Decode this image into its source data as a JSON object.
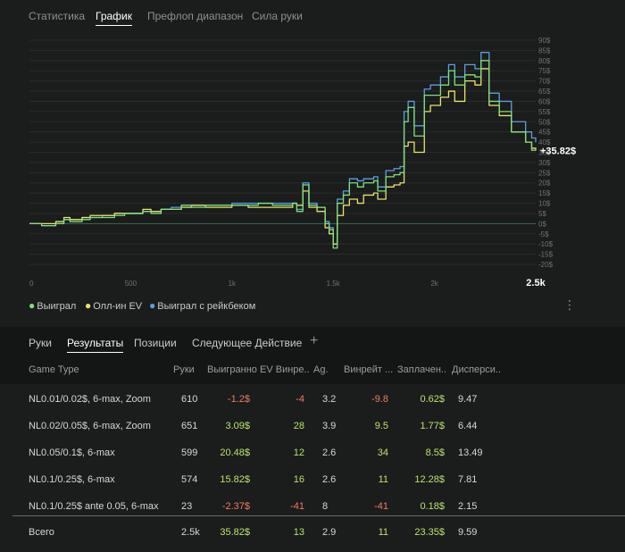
{
  "top_tabs": [
    {
      "label": "Статистика",
      "active": false
    },
    {
      "label": "График",
      "active": true
    },
    {
      "label": "Префлоп диапазон",
      "active": false
    },
    {
      "label": "Сила руки",
      "active": false
    }
  ],
  "chart_data": {
    "type": "line",
    "x_ticks": [
      "0",
      "500",
      "1k",
      "1.5k",
      "2k",
      "2.5k"
    ],
    "x_tick_values": [
      0,
      500,
      1000,
      1500,
      2000,
      2500
    ],
    "y_ticks": [
      "-20$",
      "-15$",
      "-10$",
      "-5$",
      "0$",
      "5$",
      "10$",
      "15$",
      "20$",
      "25$",
      "30$",
      "35$",
      "40$",
      "45$",
      "50$",
      "55$",
      "60$",
      "65$",
      "70$",
      "75$",
      "80$",
      "85$",
      "90$"
    ],
    "y_tick_values": [
      -20,
      -15,
      -10,
      -5,
      0,
      5,
      10,
      15,
      20,
      25,
      30,
      35,
      40,
      45,
      50,
      55,
      60,
      65,
      70,
      75,
      80,
      85,
      90
    ],
    "xlim": [
      0,
      2500
    ],
    "ylim": [
      -20,
      90
    ],
    "x_max_label": "2.5k",
    "end_label": "+35.82$",
    "series": [
      {
        "name": "Выиграл",
        "color": "#7ee07a",
        "points": [
          [
            0,
            0
          ],
          [
            60,
            -1
          ],
          [
            130,
            0
          ],
          [
            170,
            2
          ],
          [
            200,
            1
          ],
          [
            260,
            2
          ],
          [
            300,
            3
          ],
          [
            360,
            3
          ],
          [
            420,
            4
          ],
          [
            470,
            5
          ],
          [
            560,
            6
          ],
          [
            600,
            5
          ],
          [
            650,
            7
          ],
          [
            700,
            7
          ],
          [
            750,
            9
          ],
          [
            800,
            8
          ],
          [
            870,
            9
          ],
          [
            950,
            9
          ],
          [
            1000,
            9
          ],
          [
            1080,
            9
          ],
          [
            1130,
            10
          ],
          [
            1200,
            9
          ],
          [
            1270,
            9
          ],
          [
            1300,
            10
          ],
          [
            1320,
            6
          ],
          [
            1350,
            19
          ],
          [
            1380,
            9
          ],
          [
            1420,
            8
          ],
          [
            1460,
            0
          ],
          [
            1480,
            -3
          ],
          [
            1500,
            -12
          ],
          [
            1520,
            10
          ],
          [
            1550,
            14
          ],
          [
            1580,
            20
          ],
          [
            1620,
            18
          ],
          [
            1650,
            20
          ],
          [
            1700,
            21
          ],
          [
            1720,
            16
          ],
          [
            1760,
            23
          ],
          [
            1800,
            24
          ],
          [
            1830,
            25
          ],
          [
            1850,
            50
          ],
          [
            1870,
            57
          ],
          [
            1900,
            43
          ],
          [
            1950,
            63
          ],
          [
            1980,
            63
          ],
          [
            2030,
            68
          ],
          [
            2070,
            75
          ],
          [
            2100,
            68
          ],
          [
            2150,
            73
          ],
          [
            2200,
            72
          ],
          [
            2230,
            80
          ],
          [
            2270,
            60
          ],
          [
            2320,
            55
          ],
          [
            2380,
            45
          ],
          [
            2450,
            40
          ],
          [
            2480,
            36
          ],
          [
            2500,
            35.82
          ]
        ]
      },
      {
        "name": "Олл-ин EV",
        "color": "#e8e46a",
        "points": [
          [
            0,
            0
          ],
          [
            60,
            0
          ],
          [
            130,
            1
          ],
          [
            170,
            3
          ],
          [
            200,
            2
          ],
          [
            260,
            3
          ],
          [
            300,
            4
          ],
          [
            360,
            4
          ],
          [
            420,
            5
          ],
          [
            470,
            5
          ],
          [
            560,
            7
          ],
          [
            600,
            6
          ],
          [
            650,
            7
          ],
          [
            700,
            7
          ],
          [
            750,
            8
          ],
          [
            800,
            9
          ],
          [
            870,
            8
          ],
          [
            950,
            8
          ],
          [
            1000,
            9
          ],
          [
            1080,
            8
          ],
          [
            1130,
            8
          ],
          [
            1200,
            8
          ],
          [
            1270,
            8
          ],
          [
            1300,
            10
          ],
          [
            1320,
            9
          ],
          [
            1350,
            16
          ],
          [
            1380,
            8
          ],
          [
            1420,
            6
          ],
          [
            1460,
            -2
          ],
          [
            1480,
            -5
          ],
          [
            1500,
            -10
          ],
          [
            1520,
            4
          ],
          [
            1550,
            9
          ],
          [
            1580,
            12
          ],
          [
            1620,
            10
          ],
          [
            1650,
            14
          ],
          [
            1700,
            15
          ],
          [
            1720,
            12
          ],
          [
            1760,
            18
          ],
          [
            1800,
            19
          ],
          [
            1830,
            20
          ],
          [
            1850,
            38
          ],
          [
            1870,
            40
          ],
          [
            1900,
            35
          ],
          [
            1950,
            55
          ],
          [
            1980,
            58
          ],
          [
            2030,
            62
          ],
          [
            2070,
            65
          ],
          [
            2100,
            60
          ],
          [
            2150,
            70
          ],
          [
            2200,
            68
          ],
          [
            2230,
            76
          ],
          [
            2270,
            58
          ],
          [
            2320,
            53
          ],
          [
            2380,
            45
          ],
          [
            2450,
            40
          ],
          [
            2480,
            37
          ],
          [
            2500,
            36
          ]
        ]
      },
      {
        "name": "Выиграл с рейкбеком",
        "color": "#5a9fe2",
        "points": [
          [
            0,
            0
          ],
          [
            60,
            -1
          ],
          [
            130,
            0
          ],
          [
            170,
            2
          ],
          [
            200,
            2
          ],
          [
            260,
            3
          ],
          [
            300,
            3
          ],
          [
            360,
            4
          ],
          [
            420,
            5
          ],
          [
            470,
            5
          ],
          [
            560,
            6
          ],
          [
            600,
            6
          ],
          [
            650,
            7
          ],
          [
            700,
            8
          ],
          [
            750,
            9
          ],
          [
            800,
            9
          ],
          [
            870,
            9
          ],
          [
            950,
            9
          ],
          [
            1000,
            10
          ],
          [
            1080,
            10
          ],
          [
            1130,
            10
          ],
          [
            1200,
            10
          ],
          [
            1270,
            10
          ],
          [
            1300,
            10
          ],
          [
            1320,
            7
          ],
          [
            1350,
            20
          ],
          [
            1380,
            10
          ],
          [
            1420,
            8
          ],
          [
            1460,
            1
          ],
          [
            1480,
            -2
          ],
          [
            1500,
            -10
          ],
          [
            1520,
            12
          ],
          [
            1550,
            16
          ],
          [
            1580,
            22
          ],
          [
            1620,
            21
          ],
          [
            1650,
            22
          ],
          [
            1700,
            23
          ],
          [
            1720,
            18
          ],
          [
            1760,
            26
          ],
          [
            1800,
            27
          ],
          [
            1830,
            28
          ],
          [
            1850,
            55
          ],
          [
            1870,
            60
          ],
          [
            1900,
            48
          ],
          [
            1950,
            66
          ],
          [
            1980,
            68
          ],
          [
            2030,
            72
          ],
          [
            2070,
            78
          ],
          [
            2100,
            72
          ],
          [
            2150,
            78
          ],
          [
            2200,
            76
          ],
          [
            2230,
            84
          ],
          [
            2270,
            64
          ],
          [
            2320,
            60
          ],
          [
            2380,
            50
          ],
          [
            2450,
            45
          ],
          [
            2480,
            42
          ],
          [
            2500,
            40
          ]
        ]
      }
    ]
  },
  "legend": [
    {
      "label": "Выиграл",
      "color": "#7ee07a"
    },
    {
      "label": "Олл-ин EV",
      "color": "#e8e46a"
    },
    {
      "label": "Выиграл с рейкбеком",
      "color": "#5a9fe2"
    }
  ],
  "bottom_tabs": [
    {
      "label": "Руки",
      "active": false
    },
    {
      "label": "Результаты",
      "active": true
    },
    {
      "label": "Позиции",
      "active": false
    },
    {
      "label": "Следующее Действие",
      "active": false
    }
  ],
  "add_tab_icon": "+",
  "table": {
    "headers": [
      "Game Type",
      "Руки",
      "Выигранно",
      "EV Винре...",
      "Ag.",
      "Винрейт ...",
      "Заплачен...",
      "Дисперси..."
    ],
    "rows": [
      {
        "game": "NL0.01/0.02$, 6-max, Zoom",
        "hands": "610",
        "won": "-1.2$",
        "ev": "-4",
        "ag": "3.2",
        "winrate": "-9.8",
        "paid": "0.62$",
        "disp": "9.47"
      },
      {
        "game": "NL0.02/0.05$, 6-max, Zoom",
        "hands": "651",
        "won": "3.09$",
        "ev": "28",
        "ag": "3.9",
        "winrate": "9.5",
        "paid": "1.77$",
        "disp": "6.44"
      },
      {
        "game": "NL0.05/0.1$, 6-max",
        "hands": "599",
        "won": "20.48$",
        "ev": "12",
        "ag": "2.6",
        "winrate": "34",
        "paid": "8.5$",
        "disp": "13.49"
      },
      {
        "game": "NL0.1/0.25$, 6-max",
        "hands": "574",
        "won": "15.82$",
        "ev": "16",
        "ag": "2.6",
        "winrate": "11",
        "paid": "12.28$",
        "disp": "7.81"
      },
      {
        "game": "NL0.1/0.25$ ante 0.05, 6-max",
        "hands": "23",
        "won": "-2.37$",
        "ev": "-41",
        "ag": "8",
        "winrate": "-41",
        "paid": "0.18$",
        "disp": "2.15"
      }
    ],
    "total": {
      "game": "Всего",
      "hands": "2.5k",
      "won": "35.82$",
      "ev": "13",
      "ag": "2.9",
      "winrate": "11",
      "paid": "23.35$",
      "disp": "9.59"
    }
  }
}
